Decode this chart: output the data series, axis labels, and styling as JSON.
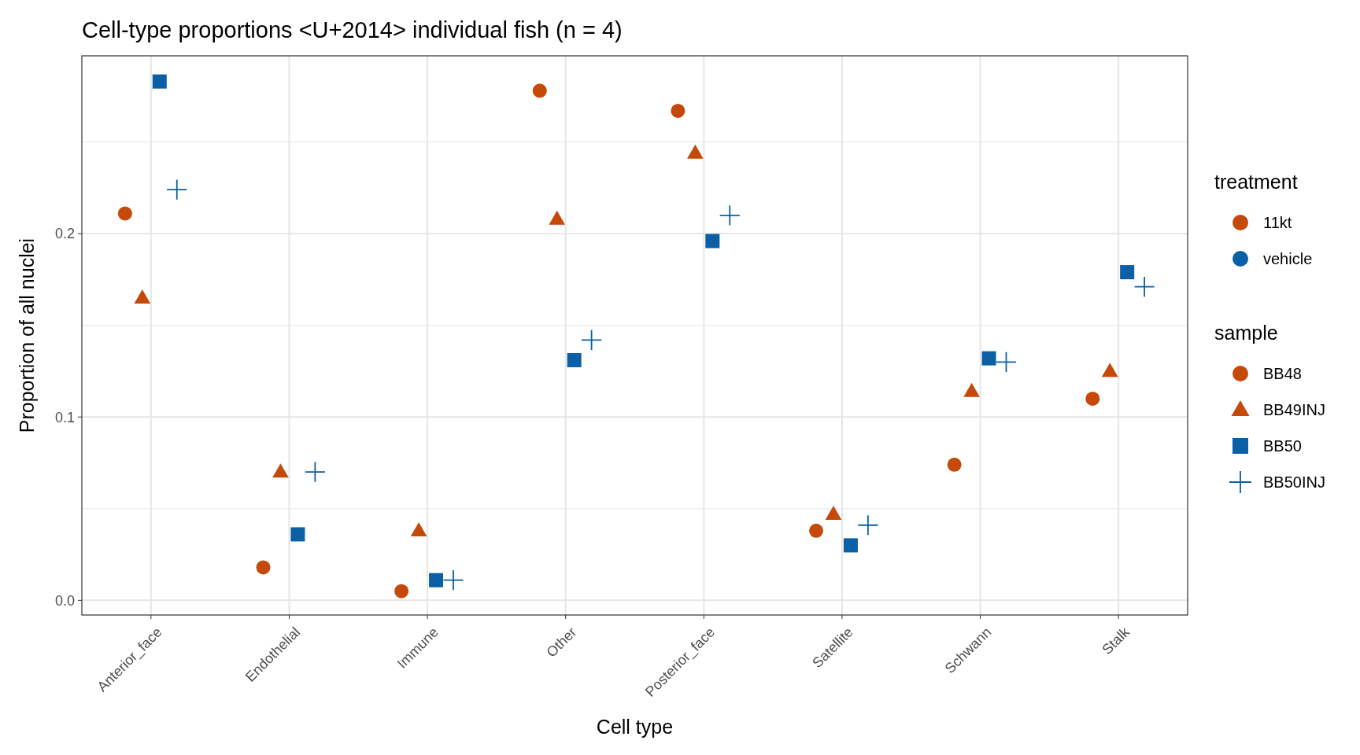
{
  "chart_data": {
    "type": "scatter",
    "title": "Cell-type proportions <U+2014> individual fish (n = 4)",
    "xlabel": "Cell type",
    "ylabel": "Proportion of all nuclei",
    "categories": [
      "Anterior_face",
      "Endothelial",
      "Immune",
      "Other",
      "Posterior_face",
      "Satellite",
      "Schwann",
      "Stalk"
    ],
    "ylim": [
      -0.008,
      0.297
    ],
    "yticks": [
      {
        "value": 0,
        "label": "0.0"
      },
      {
        "value": 0.05,
        "label": null
      },
      0.1,
      {
        "value": 0.15,
        "label": null
      },
      0.2,
      {
        "value": 0.25,
        "label": null
      }
    ],
    "grid": true,
    "legend": "right",
    "legend_title": [
      "treatment",
      "sample"
    ],
    "annotations": [
      "11kt",
      "vehicle"
    ],
    "series": [
      {
        "name": "BB48",
        "color": "#c54a0a",
        "marker": "circle",
        "values": [
          0.211,
          0.018,
          0.005,
          0.278,
          0.267,
          0.038,
          0.074,
          0.11
        ]
      },
      {
        "name": "BB49INJ",
        "color": "#c54a0a",
        "marker": "triangle",
        "values": [
          0.165,
          0.07,
          0.038,
          0.208,
          0.244,
          0.047,
          0.114,
          0.125
        ]
      },
      {
        "name": "BB50",
        "color": "#0b5fa5",
        "marker": "square",
        "values": [
          0.283,
          0.036,
          0.011,
          0.131,
          0.196,
          0.03,
          0.132,
          0.179
        ]
      },
      {
        "name": "BB50INJ",
        "color": "#0b5fa5",
        "marker": "cross",
        "values": [
          0.224,
          0.07,
          0.011,
          0.142,
          0.21,
          0.041,
          0.13,
          0.171
        ]
      }
    ]
  }
}
